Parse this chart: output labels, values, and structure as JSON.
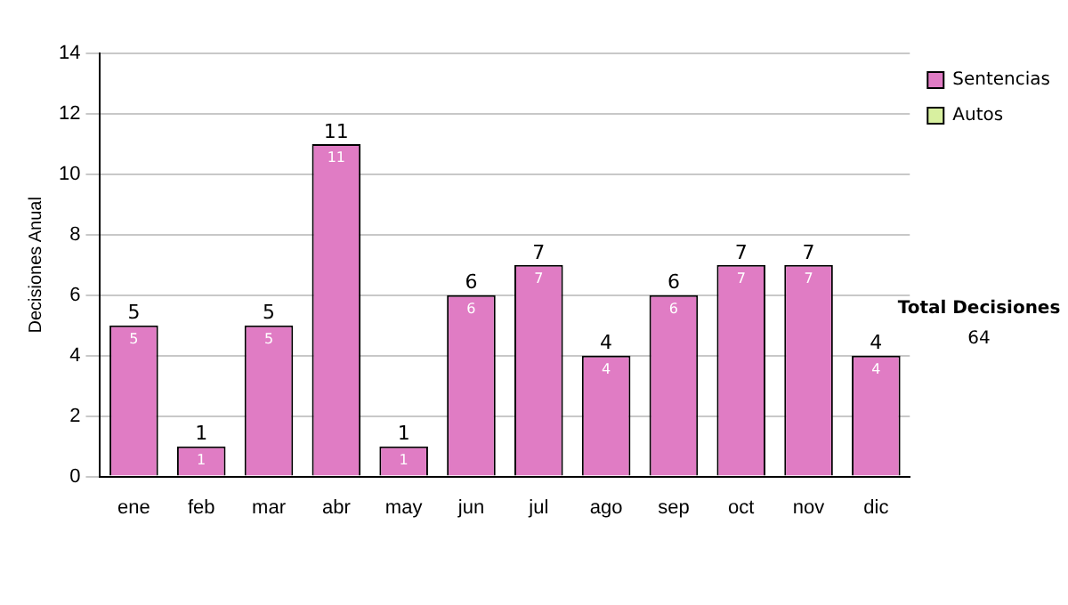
{
  "chart_data": {
    "type": "bar",
    "stacked": true,
    "ylabel": "Decisiones Anual",
    "categories": [
      "ene",
      "feb",
      "mar",
      "abr",
      "may",
      "jun",
      "jul",
      "ago",
      "sep",
      "oct",
      "nov",
      "dic"
    ],
    "series": [
      {
        "name": "Sentencias",
        "color": "#e07cc4",
        "values": [
          5,
          1,
          5,
          11,
          1,
          6,
          7,
          4,
          6,
          7,
          7,
          4
        ],
        "value_labels": [
          "5",
          "1",
          "5",
          "11",
          "1",
          "6",
          "7",
          "4",
          "6",
          "7",
          "7",
          "4"
        ]
      },
      {
        "name": "Autos",
        "color": "#d8f0a0",
        "values": [
          0,
          0,
          0,
          0,
          0,
          0,
          0,
          0,
          0,
          0,
          0,
          0
        ]
      }
    ],
    "totals": [
      "5",
      "1",
      "5",
      "11",
      "1",
      "6",
      "7",
      "4",
      "6",
      "7",
      "7",
      "4"
    ],
    "ylim": [
      0,
      14
    ],
    "yticks": [
      0,
      2,
      4,
      6,
      8,
      10,
      12,
      14
    ],
    "grid": "y",
    "legend": "right",
    "annotations": [
      "Total Decisiones",
      "64"
    ]
  }
}
